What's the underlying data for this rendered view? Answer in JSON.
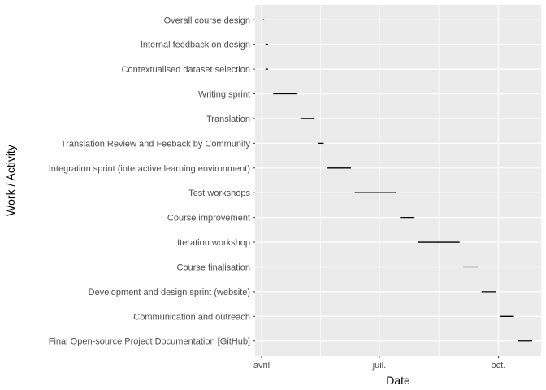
{
  "chart_data": {
    "type": "gantt",
    "xlabel": "Date",
    "ylabel": "Work / Activity",
    "x_ticks": [
      {
        "label": "avril",
        "date": "2023-04-01"
      },
      {
        "label": "juil.",
        "date": "2023-07-01"
      },
      {
        "label": "oct.",
        "date": "2023-10-01"
      }
    ],
    "xlim": [
      "2023-03-27",
      "2023-11-03"
    ],
    "grid": true,
    "legend": "none",
    "colors": {
      "panel": "#ebebeb",
      "grid": "#ffffff",
      "segment": "#000000",
      "text": "#4d4d4d"
    },
    "tasks": [
      {
        "name": "Overall course design",
        "start": "2023-04-02",
        "end": "2023-04-03"
      },
      {
        "name": "Internal feedback on design",
        "start": "2023-04-04",
        "end": "2023-04-06"
      },
      {
        "name": "Contextualised dataset selection",
        "start": "2023-04-04",
        "end": "2023-04-06"
      },
      {
        "name": "Writing sprint",
        "start": "2023-04-10",
        "end": "2023-04-28"
      },
      {
        "name": "Translation",
        "start": "2023-05-01",
        "end": "2023-05-12"
      },
      {
        "name": "Translation Review and Feeback by Community",
        "start": "2023-05-15",
        "end": "2023-05-19"
      },
      {
        "name": "Integration sprint (interactive learning environment)",
        "start": "2023-05-22",
        "end": "2023-06-09"
      },
      {
        "name": "Test workshops",
        "start": "2023-06-12",
        "end": "2023-07-14"
      },
      {
        "name": "Course improvement",
        "start": "2023-07-17",
        "end": "2023-07-28"
      },
      {
        "name": "Iteration workshop",
        "start": "2023-07-31",
        "end": "2023-09-01"
      },
      {
        "name": "Course finalisation",
        "start": "2023-09-04",
        "end": "2023-09-15"
      },
      {
        "name": "Development and design sprint (website)",
        "start": "2023-09-18",
        "end": "2023-09-29"
      },
      {
        "name": "Communication and outreach",
        "start": "2023-10-02",
        "end": "2023-10-13"
      },
      {
        "name": "Final Open-source Project Documentation [GitHub]",
        "start": "2023-10-16",
        "end": "2023-10-27"
      }
    ]
  }
}
